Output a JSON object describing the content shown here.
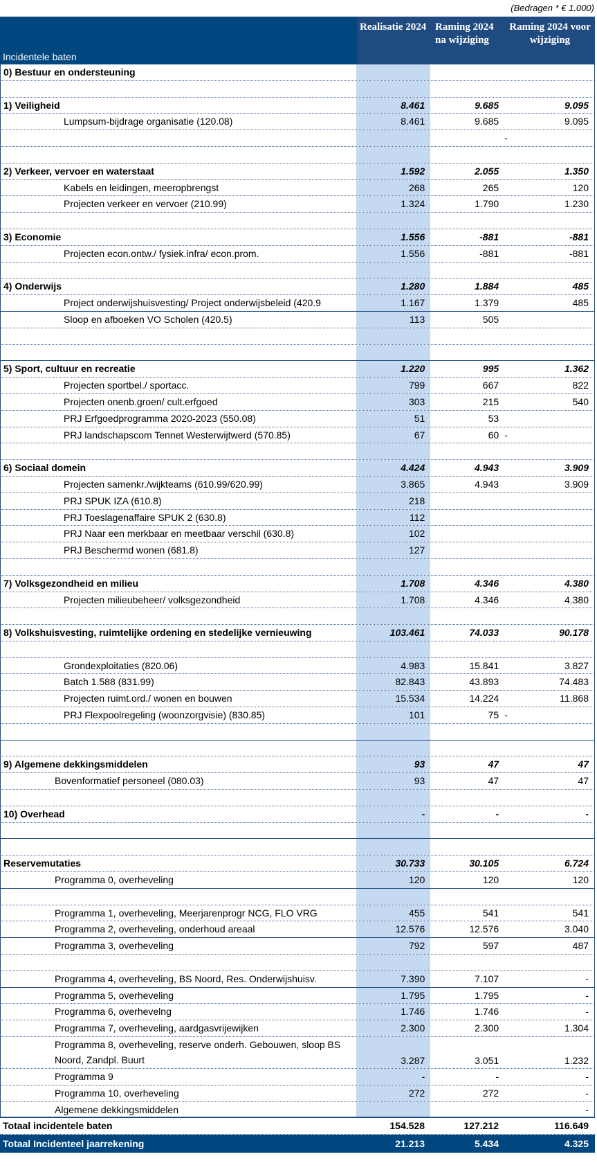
{
  "note": "(Bedragen * € 1.000)",
  "header": {
    "label": "Incidentele baten",
    "col1": "Realisatie 2024",
    "col2": "Raming 2024 na wijziging",
    "col3": "Raming 2024 voor wijziging"
  },
  "colors": {
    "header": "#00467f",
    "highlight_column": "#c5d9f0"
  },
  "rows": [
    {
      "type": "section",
      "label": "0) Bestuur en ondersteuning",
      "v": [
        "",
        "",
        ""
      ]
    },
    {
      "type": "blank",
      "label": "",
      "v": [
        "",
        "",
        ""
      ]
    },
    {
      "type": "section",
      "label": "1) Veiligheid",
      "v": [
        "8.461",
        "9.685",
        "9.095"
      ]
    },
    {
      "type": "item",
      "label": "Lumpsum-bijdrage organisatie (120.08)",
      "v": [
        "8.461",
        "9.685",
        "9.095"
      ]
    },
    {
      "type": "blank",
      "label": "",
      "v": [
        "",
        "",
        "-"
      ],
      "c3left": true
    },
    {
      "type": "blank",
      "label": "",
      "v": [
        "",
        "",
        ""
      ]
    },
    {
      "type": "section",
      "label": "2) Verkeer, vervoer en waterstaat",
      "v": [
        "1.592",
        "2.055",
        "1.350"
      ]
    },
    {
      "type": "item",
      "label": "Kabels en leidingen, meeropbrengst",
      "v": [
        "268",
        "265",
        "120"
      ]
    },
    {
      "type": "item",
      "label": "Projecten verkeer en vervoer (210.99)",
      "v": [
        "1.324",
        "1.790",
        "1.230"
      ]
    },
    {
      "type": "blank",
      "label": "",
      "v": [
        "",
        "",
        ""
      ]
    },
    {
      "type": "section",
      "label": "3) Economie",
      "v": [
        "1.556",
        "-881",
        "-881"
      ]
    },
    {
      "type": "item",
      "label": "Projecten econ.ontw./ fysiek.infra/ econ.prom.",
      "v": [
        "1.556",
        "-881",
        "-881"
      ]
    },
    {
      "type": "blank",
      "label": "",
      "v": [
        "",
        "",
        ""
      ]
    },
    {
      "type": "section",
      "label": "4) Onderwijs",
      "v": [
        "1.280",
        "1.884",
        "485"
      ]
    },
    {
      "type": "item",
      "label": "Project onderwijshuisvesting/ Project onderwijsbeleid (420.9",
      "v": [
        "1.167",
        "1.379",
        "485"
      ],
      "border": "solid"
    },
    {
      "type": "item",
      "label": "Sloop en afboeken VO Scholen (420.5)",
      "v": [
        "113",
        "505",
        ""
      ]
    },
    {
      "type": "blank",
      "label": "",
      "v": [
        "",
        "",
        ""
      ]
    },
    {
      "type": "blank",
      "label": "",
      "v": [
        "",
        "",
        ""
      ],
      "border": "solid"
    },
    {
      "type": "section",
      "label": "5) Sport, cultuur en recreatie",
      "v": [
        "1.220",
        "995",
        "1.362"
      ]
    },
    {
      "type": "item",
      "label": "Projecten sportbel./ sportacc.",
      "v": [
        "799",
        "667",
        "822"
      ]
    },
    {
      "type": "item",
      "label": "Projecten onenb.groen/ cult.erfgoed",
      "v": [
        "303",
        "215",
        "540"
      ]
    },
    {
      "type": "item",
      "label": "PRJ Erfgoedprogramma 2020-2023 (550.08)",
      "v": [
        "51",
        "53",
        ""
      ]
    },
    {
      "type": "item",
      "label": "PRJ landschapscom Tennet Westerwijtwerd (570.85)",
      "v": [
        "67",
        "60",
        "-"
      ],
      "c3left": true
    },
    {
      "type": "blank",
      "label": "",
      "v": [
        "",
        "",
        ""
      ]
    },
    {
      "type": "section",
      "label": "6) Sociaal domein",
      "v": [
        "4.424",
        "4.943",
        "3.909"
      ]
    },
    {
      "type": "item",
      "label": "Projecten samenkr./wijkteams (610.99/620.99)",
      "v": [
        "3.865",
        "4.943",
        "3.909"
      ]
    },
    {
      "type": "item",
      "label": "PRJ SPUK IZA (610.8)",
      "v": [
        "218",
        "",
        ""
      ]
    },
    {
      "type": "item",
      "label": "PRJ Toeslagenaffaire SPUK 2 (630.8)",
      "v": [
        "112",
        "",
        ""
      ]
    },
    {
      "type": "item",
      "label": "PRJ Naar een merkbaar en meetbaar verschil (630.8)",
      "v": [
        "102",
        "",
        ""
      ]
    },
    {
      "type": "item",
      "label": "PRJ Beschermd wonen (681.8)",
      "v": [
        "127",
        "",
        ""
      ]
    },
    {
      "type": "blank",
      "label": "",
      "v": [
        "",
        "",
        ""
      ]
    },
    {
      "type": "section",
      "label": "7) Volksgezondheid en milieu",
      "v": [
        "1.708",
        "4.346",
        "4.380"
      ]
    },
    {
      "type": "item",
      "label": "Projecten milieubeheer/ volksgezondheid",
      "v": [
        "1.708",
        "4.346",
        "4.380"
      ]
    },
    {
      "type": "blank",
      "label": "",
      "v": [
        "",
        "",
        ""
      ]
    },
    {
      "type": "section",
      "label": "8) Volkshuisvesting, ruimtelijke ordening en stedelijke vernieuwing",
      "v": [
        "103.461",
        "74.033",
        "90.178"
      ]
    },
    {
      "type": "blank",
      "label": "",
      "v": [
        "",
        "",
        ""
      ]
    },
    {
      "type": "item",
      "label": "Grondexploitaties (820.06)",
      "v": [
        "4.983",
        "15.841",
        "3.827"
      ]
    },
    {
      "type": "item",
      "label": "Batch 1.588 (831.99)",
      "v": [
        "82.843",
        "43.893",
        "74.483"
      ]
    },
    {
      "type": "item",
      "label": "Projecten ruimt.ord./ wonen en bouwen",
      "v": [
        "15.534",
        "14.224",
        "11.868"
      ]
    },
    {
      "type": "item",
      "label": "PRJ Flexpoolregeling (woonzorgvisie) (830.85)",
      "v": [
        "101",
        "75",
        "-"
      ],
      "c3left": true
    },
    {
      "type": "blank",
      "label": "",
      "v": [
        "",
        "",
        ""
      ],
      "border": "solid"
    },
    {
      "type": "blank",
      "label": "",
      "v": [
        "",
        "",
        ""
      ]
    },
    {
      "type": "section",
      "label": "9) Algemene dekkingsmiddelen",
      "v": [
        "93",
        "47",
        "47"
      ]
    },
    {
      "type": "item2",
      "label": "Bovenformatief personeel (080.03)",
      "v": [
        "93",
        "47",
        "47"
      ]
    },
    {
      "type": "blank",
      "label": "",
      "v": [
        "",
        "",
        ""
      ]
    },
    {
      "type": "section",
      "label": "10) Overhead",
      "v": [
        "-",
        "-",
        "-"
      ]
    },
    {
      "type": "blank",
      "label": "",
      "v": [
        "",
        "",
        ""
      ],
      "border": "solid"
    },
    {
      "type": "blank",
      "label": "",
      "v": [
        "",
        "",
        ""
      ]
    },
    {
      "type": "section",
      "label": "Reservemutaties",
      "v": [
        "30.733",
        "30.105",
        "6.724"
      ]
    },
    {
      "type": "item2",
      "label": "Programma 0, overheveling",
      "v": [
        "120",
        "120",
        "120"
      ],
      "border": "solid"
    },
    {
      "type": "blank",
      "label": "",
      "v": [
        "",
        "",
        ""
      ]
    },
    {
      "type": "item2",
      "label": "Programma 1, overheveling, Meerjarenprogr NCG, FLO VRG",
      "v": [
        "455",
        "541",
        "541"
      ]
    },
    {
      "type": "item2",
      "label": "Programma 2, overheveling, onderhoud areaal",
      "v": [
        "12.576",
        "12.576",
        "3.040"
      ],
      "border": "solid"
    },
    {
      "type": "item2",
      "label": "Programma 3, overheveling",
      "v": [
        "792",
        "597",
        "487"
      ]
    },
    {
      "type": "blank",
      "label": "",
      "v": [
        "",
        "",
        ""
      ]
    },
    {
      "type": "item2",
      "label": "Programma 4, overheveling, BS Noord, Res. Onderwijshuisv.",
      "v": [
        "7.390",
        "7.107",
        "-"
      ],
      "border": "solid"
    },
    {
      "type": "item2",
      "label": "Programma 5, overheveling",
      "v": [
        "1.795",
        "1.795",
        "-"
      ]
    },
    {
      "type": "item2",
      "label": "Programma 6, overhevelng",
      "v": [
        "1.746",
        "1.746",
        "-"
      ]
    },
    {
      "type": "item2",
      "label": "Programma 7, overheveling, aardgasvrijewijken",
      "v": [
        "2.300",
        "2.300",
        "1.304"
      ]
    },
    {
      "type": "item2",
      "label": "Programma 8, overheveling, reserve onderh. Gebouwen, sloop BS Noord, Zandpl. Buurt",
      "v": [
        "3.287",
        "3.051",
        "1.232"
      ],
      "double": true
    },
    {
      "type": "item2",
      "label": "Programma 9",
      "v": [
        "-",
        "-",
        "-"
      ]
    },
    {
      "type": "item2",
      "label": "Programma 10, overheveling",
      "v": [
        "272",
        "272",
        "-"
      ]
    },
    {
      "type": "item2",
      "label": "Algemene dekkingsmiddelen",
      "v": [
        "",
        "",
        "-"
      ],
      "border": "thick"
    }
  ],
  "totals": {
    "label": "Totaal incidentele baten",
    "v": [
      "154.528",
      "127.212",
      "116.649"
    ]
  },
  "grand_total": {
    "label": "Totaal Incidenteel jaarrekening",
    "v": [
      "21.213",
      "5.434",
      "4.325"
    ]
  }
}
